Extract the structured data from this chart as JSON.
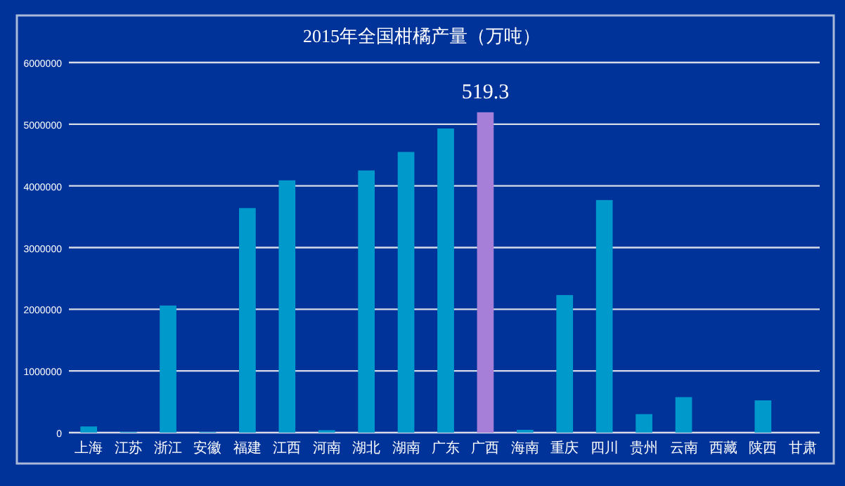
{
  "chart_data": {
    "type": "bar",
    "title": "2015年全国柑橘产量（万吨）",
    "categories": [
      "上海",
      "江苏",
      "浙江",
      "安徽",
      "福建",
      "江西",
      "河南",
      "湖北",
      "湖南",
      "广东",
      "广西",
      "海南",
      "重庆",
      "四川",
      "贵州",
      "云南",
      "西藏",
      "陕西",
      "甘肃"
    ],
    "values": [
      100000,
      10000,
      2060000,
      10000,
      3640000,
      4090000,
      40000,
      4250000,
      4550000,
      4930000,
      5193000,
      45000,
      2230000,
      3770000,
      300000,
      575000,
      0,
      523000,
      0
    ],
    "colors": [
      "#0099cc",
      "#0099cc",
      "#0099cc",
      "#0099cc",
      "#0099cc",
      "#0099cc",
      "#0099cc",
      "#0099cc",
      "#0099cc",
      "#0099cc",
      "#a67fd9",
      "#0099cc",
      "#0099cc",
      "#0099cc",
      "#0099cc",
      "#0099cc",
      "#0099cc",
      "#0099cc",
      "#0099cc"
    ],
    "ylim": [
      0,
      6000000
    ],
    "yticks": [
      0,
      1000000,
      2000000,
      3000000,
      4000000,
      5000000,
      6000000
    ],
    "grid": "y",
    "annotations": [
      {
        "text": "519.3",
        "x": "广西",
        "y": 5193000
      }
    ]
  }
}
